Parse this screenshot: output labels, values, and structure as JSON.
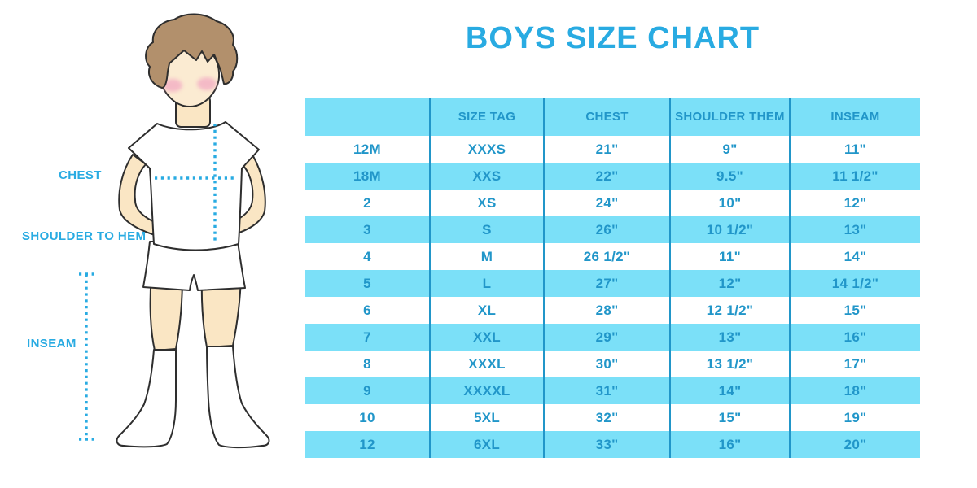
{
  "title": "BOYS SIZE CHART",
  "diagram": {
    "labels": {
      "chest": "CHEST",
      "shoulder_to_hem": "SHOULDER TO HEM",
      "inseam": "INSEAM"
    }
  },
  "chart_data": {
    "type": "table",
    "title": "BOYS SIZE CHART",
    "headers": [
      "",
      "SIZE TAG",
      "CHEST",
      "SHOULDER THEM",
      "INSEAM"
    ],
    "rows": [
      [
        "12M",
        "XXXS",
        "21\"",
        "9\"",
        "11\""
      ],
      [
        "18M",
        "XXS",
        "22\"",
        "9.5\"",
        "11 1/2\""
      ],
      [
        "2",
        "XS",
        "24\"",
        "10\"",
        "12\""
      ],
      [
        "3",
        "S",
        "26\"",
        "10 1/2\"",
        "13\""
      ],
      [
        "4",
        "M",
        "26 1/2\"",
        "11\"",
        "14\""
      ],
      [
        "5",
        "L",
        "27\"",
        "12\"",
        "14 1/2\""
      ],
      [
        "6",
        "XL",
        "28\"",
        "12 1/2\"",
        "15\""
      ],
      [
        "7",
        "XXL",
        "29\"",
        "13\"",
        "16\""
      ],
      [
        "8",
        "XXXL",
        "30\"",
        "13 1/2\"",
        "17\""
      ],
      [
        "9",
        "XXXXL",
        "31\"",
        "14\"",
        "18\""
      ],
      [
        "10",
        "5XL",
        "32\"",
        "15\"",
        "19\""
      ],
      [
        "12",
        "6XL",
        "33\"",
        "16\"",
        "20\""
      ]
    ],
    "layout": {
      "striped": true,
      "stripe_rows": "even rows blue starting with 18M",
      "header_fill": "blue"
    }
  },
  "colors": {
    "accent_blue": "#29ABE2",
    "table_fill_blue": "#7BE0F8",
    "table_text_blue": "#2196C9",
    "skin": "#FAE6C4",
    "hair": "#B2906C",
    "cheek": "#F3AEC4",
    "outline": "#2e2e2e"
  }
}
